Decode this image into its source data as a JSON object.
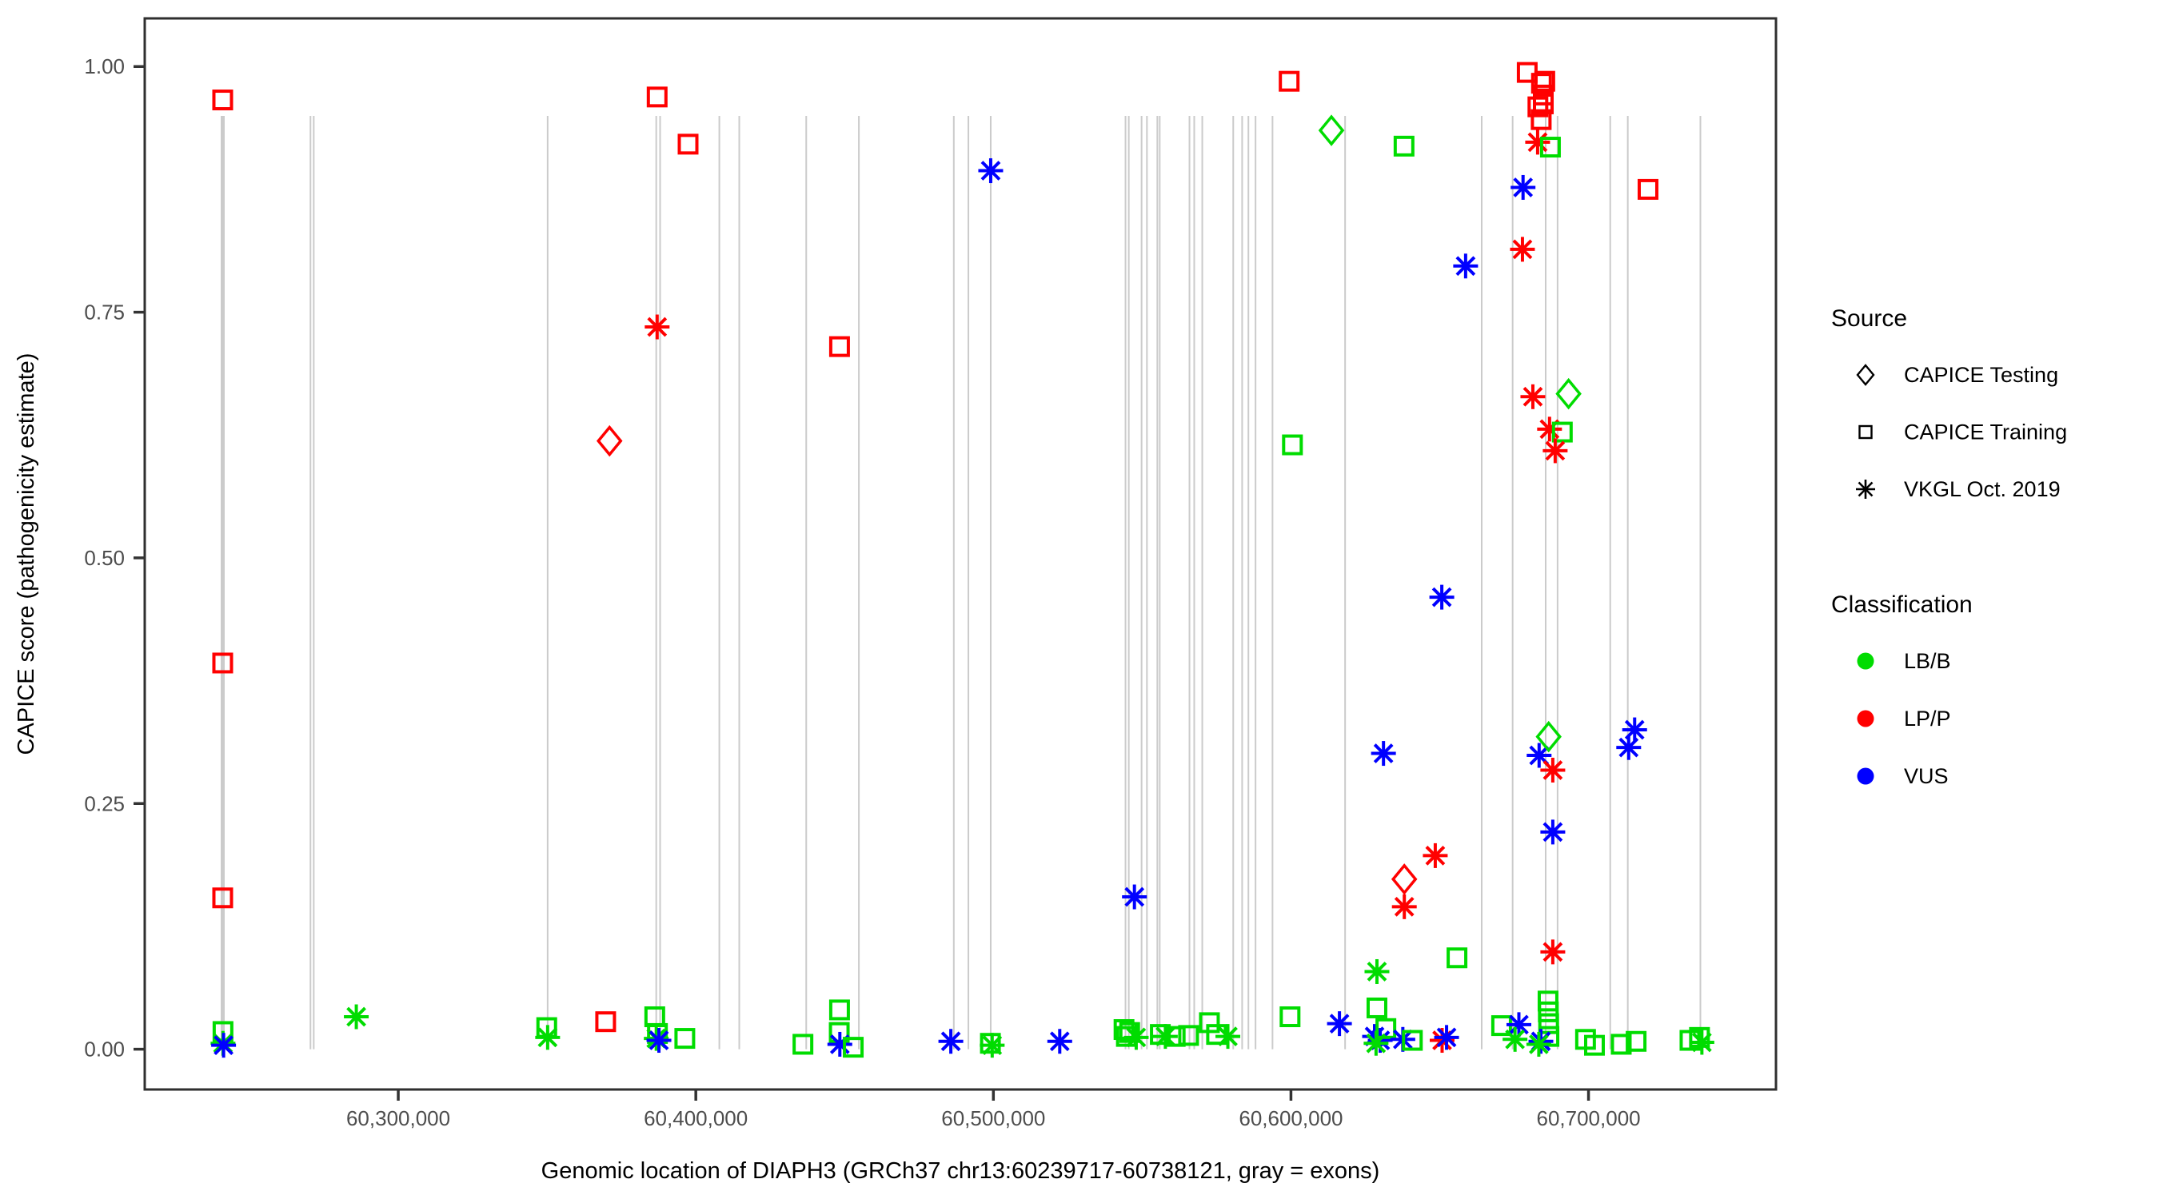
{
  "chart_data": {
    "type": "scatter",
    "title": "",
    "xlabel": "Genomic location of DIAPH3 (GRCh37 chr13:60239717-60738121, gray = exons)",
    "ylabel": "CAPICE score (pathogenicity estimate)",
    "x_domain": [
      60214800,
      60763000
    ],
    "y_domain": [
      -0.041,
      1.049
    ],
    "grid": "off",
    "gene_region_note": "gray vertical lines mark exons",
    "x_ticks": [
      {
        "value": 60300000,
        "label": "60,300,000"
      },
      {
        "value": 60400000,
        "label": "60,400,000"
      },
      {
        "value": 60500000,
        "label": "60,500,000"
      },
      {
        "value": 60600000,
        "label": "60,600,000"
      },
      {
        "value": 60700000,
        "label": "60,700,000"
      }
    ],
    "y_ticks": [
      {
        "value": 0.0,
        "label": "0.00"
      },
      {
        "value": 0.25,
        "label": "0.25"
      },
      {
        "value": 0.5,
        "label": "0.50"
      },
      {
        "value": 0.75,
        "label": "0.75"
      },
      {
        "value": 1.0,
        "label": "1.00"
      }
    ],
    "colors": {
      "LB/B": "#00DC00",
      "LP/P": "#FF0000",
      "VUS": "#0000FF",
      "exon_line": "#CBCBCB",
      "axis_text": "#4D4D4D",
      "panel_border": "#2F2F2F"
    },
    "shapes": {
      "testing": "open-diamond",
      "training": "open-square",
      "vkgl": "asterisk-8-ray"
    },
    "legend": {
      "source": {
        "title": "Source",
        "items": [
          {
            "label": "CAPICE Testing",
            "shape": "diamond"
          },
          {
            "label": "CAPICE Training",
            "shape": "square"
          },
          {
            "label": "VKGL Oct. 2019",
            "shape": "asterisk"
          }
        ]
      },
      "classification": {
        "title": "Classification",
        "items": [
          {
            "label": "LB/B",
            "color": "#00DC00"
          },
          {
            "label": "LP/P",
            "color": "#FF0000"
          },
          {
            "label": "VUS",
            "color": "#0000FF"
          }
        ]
      }
    },
    "exons": [
      60241000,
      60270500,
      60271600,
      60350200,
      60386700,
      60388000,
      60407900,
      60414600,
      60437100,
      60454800,
      60486700,
      60491600,
      60499100,
      60544400,
      60545500,
      60549800,
      60551600,
      60555100,
      60555900,
      60565900,
      60567500,
      60570200,
      60580600,
      60583600,
      60585700,
      60588100,
      60593800,
      60618200,
      60664100,
      60674500,
      60685600,
      60689600,
      60707300,
      60713200,
      60737600
    ],
    "exon_wide": [
      60241000
    ],
    "point_format": [
      "genomic_position",
      "capice_score",
      "source(testing=diamond|training=square|vkgl=asterisk)",
      "classification"
    ],
    "points": [
      [
        60241000,
        0.966,
        "training",
        "LP/P"
      ],
      [
        60241000,
        0.393,
        "training",
        "LP/P"
      ],
      [
        60241000,
        0.154,
        "training",
        "LP/P"
      ],
      [
        60241100,
        0.018,
        "training",
        "LB/B"
      ],
      [
        60241100,
        0.006,
        "vkgl",
        "LB/B"
      ],
      [
        60241300,
        0.004,
        "vkgl",
        "VUS"
      ],
      [
        60285900,
        0.033,
        "vkgl",
        "LB/B"
      ],
      [
        60349900,
        0.022,
        "training",
        "LB/B"
      ],
      [
        60350200,
        0.012,
        "vkgl",
        "LB/B"
      ],
      [
        60369700,
        0.028,
        "training",
        "LP/P"
      ],
      [
        60371000,
        0.619,
        "testing",
        "LP/P"
      ],
      [
        60386200,
        0.033,
        "training",
        "LB/B"
      ],
      [
        60387000,
        0.969,
        "training",
        "LP/P"
      ],
      [
        60387000,
        0.735,
        "vkgl",
        "LP/P"
      ],
      [
        60387100,
        0.016,
        "training",
        "LB/B"
      ],
      [
        60386700,
        0.011,
        "vkgl",
        "LB/B"
      ],
      [
        60387600,
        0.009,
        "vkgl",
        "VUS"
      ],
      [
        60396300,
        0.011,
        "training",
        "LB/B"
      ],
      [
        60397400,
        0.921,
        "training",
        "LP/P"
      ],
      [
        60436000,
        0.005,
        "training",
        "LB/B"
      ],
      [
        60448300,
        0.715,
        "training",
        "LP/P"
      ],
      [
        60448300,
        0.04,
        "training",
        "LB/B"
      ],
      [
        60448200,
        0.017,
        "training",
        "LB/B"
      ],
      [
        60448400,
        0.005,
        "vkgl",
        "VUS"
      ],
      [
        60452900,
        0.002,
        "training",
        "LB/B"
      ],
      [
        60485700,
        0.008,
        "vkgl",
        "VUS"
      ],
      [
        60499100,
        0.894,
        "vkgl",
        "VUS"
      ],
      [
        60499000,
        0.006,
        "training",
        "LB/B"
      ],
      [
        60499600,
        0.004,
        "vkgl",
        "LB/B"
      ],
      [
        60522300,
        0.008,
        "vkgl",
        "VUS"
      ],
      [
        60543900,
        0.02,
        "training",
        "LB/B"
      ],
      [
        60544700,
        0.013,
        "training",
        "LB/B"
      ],
      [
        60545800,
        0.017,
        "training",
        "LB/B"
      ],
      [
        60548000,
        0.012,
        "vkgl",
        "LB/B"
      ],
      [
        60547400,
        0.155,
        "vkgl",
        "VUS"
      ],
      [
        60556100,
        0.015,
        "training",
        "LB/B"
      ],
      [
        60557800,
        0.013,
        "vkgl",
        "LB/B"
      ],
      [
        60561100,
        0.013,
        "training",
        "LB/B"
      ],
      [
        60565600,
        0.014,
        "training",
        "LB/B"
      ],
      [
        60572600,
        0.027,
        "training",
        "LB/B"
      ],
      [
        60575000,
        0.015,
        "training",
        "LB/B"
      ],
      [
        60578800,
        0.013,
        "vkgl",
        "LB/B"
      ],
      [
        60599400,
        0.985,
        "training",
        "LP/P"
      ],
      [
        60600500,
        0.615,
        "training",
        "LB/B"
      ],
      [
        60599700,
        0.033,
        "training",
        "LB/B"
      ],
      [
        60613600,
        0.935,
        "testing",
        "LB/B"
      ],
      [
        60616300,
        0.026,
        "vkgl",
        "VUS"
      ],
      [
        60628900,
        0.042,
        "training",
        "LB/B"
      ],
      [
        60628900,
        0.079,
        "vkgl",
        "LB/B"
      ],
      [
        60628100,
        0.013,
        "vkgl",
        "VUS"
      ],
      [
        60630000,
        0.009,
        "vkgl",
        "VUS"
      ],
      [
        60628600,
        0.006,
        "vkgl",
        "LB/B"
      ],
      [
        60631900,
        0.021,
        "training",
        "LB/B"
      ],
      [
        60631100,
        0.301,
        "vkgl",
        "VUS"
      ],
      [
        60638000,
        0.919,
        "training",
        "LB/B"
      ],
      [
        60638100,
        0.173,
        "testing",
        "LP/P"
      ],
      [
        60638100,
        0.145,
        "vkgl",
        "LP/P"
      ],
      [
        60637600,
        0.01,
        "vkgl",
        "VUS"
      ],
      [
        60640800,
        0.009,
        "training",
        "LB/B"
      ],
      [
        60648500,
        0.197,
        "vkgl",
        "LP/P"
      ],
      [
        60650700,
        0.46,
        "vkgl",
        "VUS"
      ],
      [
        60650800,
        0.009,
        "vkgl",
        "LP/P"
      ],
      [
        60652300,
        0.012,
        "vkgl",
        "VUS"
      ],
      [
        60655800,
        0.093,
        "training",
        "LB/B"
      ],
      [
        60658700,
        0.797,
        "vkgl",
        "VUS"
      ],
      [
        60670800,
        0.024,
        "training",
        "LB/B"
      ],
      [
        60678000,
        0.877,
        "vkgl",
        "VUS"
      ],
      [
        60679400,
        0.994,
        "training",
        "LP/P"
      ],
      [
        60677800,
        0.814,
        "vkgl",
        "LP/P"
      ],
      [
        60685300,
        0.985,
        "training",
        "LP/P"
      ],
      [
        60684200,
        0.983,
        "training",
        "LP/P"
      ],
      [
        60684800,
        0.971,
        "training",
        "LP/P"
      ],
      [
        60683000,
        0.959,
        "training",
        "LP/P"
      ],
      [
        60684800,
        0.962,
        "training",
        "LP/P"
      ],
      [
        60684100,
        0.946,
        "training",
        "LP/P"
      ],
      [
        60682900,
        0.923,
        "vkgl",
        "LP/P"
      ],
      [
        60687200,
        0.918,
        "training",
        "LB/B"
      ],
      [
        60681300,
        0.664,
        "vkgl",
        "LP/P"
      ],
      [
        60686900,
        0.631,
        "vkgl",
        "LP/P"
      ],
      [
        60691200,
        0.628,
        "training",
        "LB/B"
      ],
      [
        60688800,
        0.609,
        "vkgl",
        "LP/P"
      ],
      [
        60693300,
        0.667,
        "testing",
        "LB/B"
      ],
      [
        60683400,
        0.299,
        "vkgl",
        "VUS"
      ],
      [
        60686600,
        0.318,
        "testing",
        "LB/B"
      ],
      [
        60688000,
        0.284,
        "vkgl",
        "LP/P"
      ],
      [
        60688000,
        0.221,
        "vkgl",
        "VUS"
      ],
      [
        60688000,
        0.099,
        "vkgl",
        "LP/P"
      ],
      [
        60686400,
        0.049,
        "training",
        "LB/B"
      ],
      [
        60686500,
        0.038,
        "training",
        "LB/B"
      ],
      [
        60686600,
        0.026,
        "training",
        "LB/B"
      ],
      [
        60686700,
        0.013,
        "training",
        "LB/B"
      ],
      [
        60676600,
        0.025,
        "vkgl",
        "VUS"
      ],
      [
        60675300,
        0.01,
        "vkgl",
        "LB/B"
      ],
      [
        60684000,
        0.008,
        "vkgl",
        "VUS"
      ],
      [
        60683300,
        0.005,
        "vkgl",
        "LB/B"
      ],
      [
        60699000,
        0.01,
        "training",
        "LB/B"
      ],
      [
        60702000,
        0.004,
        "training",
        "LB/B"
      ],
      [
        60711000,
        0.005,
        "training",
        "LB/B"
      ],
      [
        60716000,
        0.008,
        "training",
        "LB/B"
      ],
      [
        60715500,
        0.325,
        "vkgl",
        "VUS"
      ],
      [
        60713500,
        0.307,
        "vkgl",
        "VUS"
      ],
      [
        60720000,
        0.875,
        "training",
        "LP/P"
      ],
      [
        60734100,
        0.009,
        "training",
        "LB/B"
      ],
      [
        60737300,
        0.012,
        "training",
        "LB/B"
      ],
      [
        60738100,
        0.007,
        "vkgl",
        "LB/B"
      ]
    ]
  }
}
